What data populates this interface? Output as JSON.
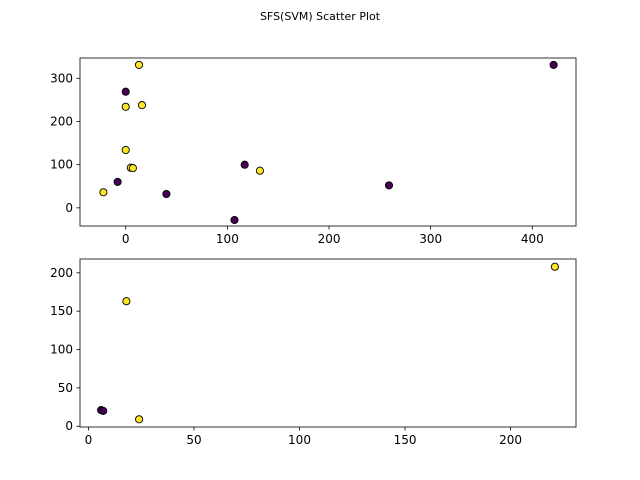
{
  "chart_data": {
    "type": "scatter",
    "title": "SFS(SVM) Scatter Plot",
    "colors": {
      "class0": "#440154",
      "class1": "#fde725"
    },
    "subplots": [
      {
        "xlim": [
          -45,
          443
        ],
        "ylim": [
          -42,
          347
        ],
        "xticks": [
          0,
          100,
          200,
          300,
          400
        ],
        "yticks": [
          0,
          100,
          200,
          300
        ],
        "points": [
          {
            "x": 13,
            "y": 331,
            "c": 1
          },
          {
            "x": 421,
            "y": 331,
            "c": 0
          },
          {
            "x": 0,
            "y": 269,
            "c": 0
          },
          {
            "x": 16,
            "y": 238,
            "c": 1
          },
          {
            "x": 0,
            "y": 234,
            "c": 1
          },
          {
            "x": 0,
            "y": 134,
            "c": 1
          },
          {
            "x": 5,
            "y": 93,
            "c": 1
          },
          {
            "x": 7,
            "y": 92,
            "c": 1
          },
          {
            "x": -8,
            "y": 60,
            "c": 0
          },
          {
            "x": -22,
            "y": 36,
            "c": 1
          },
          {
            "x": 40,
            "y": 32,
            "c": 0
          },
          {
            "x": 117,
            "y": 100,
            "c": 0
          },
          {
            "x": 132,
            "y": 86,
            "c": 1
          },
          {
            "x": 107,
            "y": -28,
            "c": 0
          },
          {
            "x": 259,
            "y": 52,
            "c": 0
          }
        ]
      },
      {
        "xlim": [
          -4,
          231
        ],
        "ylim": [
          -1,
          218
        ],
        "xticks": [
          0,
          50,
          100,
          150,
          200
        ],
        "yticks": [
          0,
          50,
          100,
          150,
          200
        ],
        "points": [
          {
            "x": 18,
            "y": 163,
            "c": 1
          },
          {
            "x": 221,
            "y": 208,
            "c": 1
          },
          {
            "x": 6,
            "y": 21,
            "c": 0
          },
          {
            "x": 7,
            "y": 20,
            "c": 0
          },
          {
            "x": 24,
            "y": 9,
            "c": 1
          }
        ]
      }
    ]
  }
}
